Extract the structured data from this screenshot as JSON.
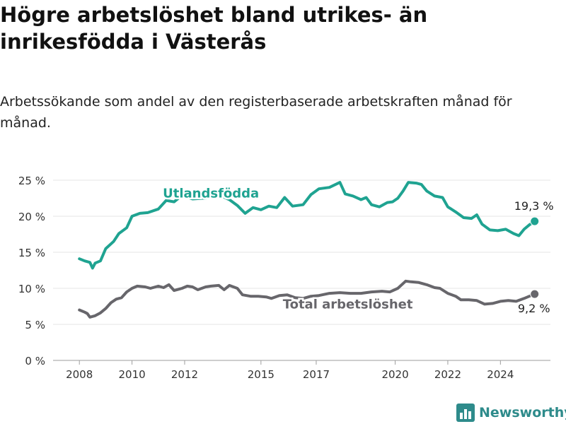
{
  "title": "Högre arbetslöshet bland utrikes- än inrikesfödda i Västerås",
  "subtitle": "Arbetssökande som andel av den registerbaserade arbetskraften månad för månad.",
  "brand": {
    "name": "Newsworthy",
    "icon": "bar-chart-logo-icon",
    "color": "#2e8b8b"
  },
  "chart_data": {
    "type": "line",
    "y_ticks": [
      "0 %",
      "5 %",
      "10 %",
      "15 %",
      "20 %",
      "25 %"
    ],
    "y_tick_values": [
      0,
      5,
      10,
      15,
      20,
      25
    ],
    "ylim": [
      0,
      25
    ],
    "x_ticks": [
      "2008",
      "2010",
      "2012",
      "2015",
      "2017",
      "2020",
      "2022",
      "2024"
    ],
    "x_tick_values": [
      2008.0,
      2010.0,
      2012.0,
      2014.9,
      2017.0,
      2020.0,
      2022.0,
      2024.0
    ],
    "xlim": [
      2007.0,
      2025.9
    ],
    "grid": "horizontal",
    "series": [
      {
        "name": "Utlandsfödda",
        "color": "#1fa391",
        "end_label": "19,3 %",
        "points": [
          [
            2008.0,
            14.1
          ],
          [
            2008.2,
            13.8
          ],
          [
            2008.4,
            13.6
          ],
          [
            2008.5,
            12.8
          ],
          [
            2008.6,
            13.5
          ],
          [
            2008.8,
            13.8
          ],
          [
            2009.0,
            15.5
          ],
          [
            2009.3,
            16.5
          ],
          [
            2009.5,
            17.6
          ],
          [
            2009.8,
            18.4
          ],
          [
            2010.0,
            20.0
          ],
          [
            2010.3,
            20.4
          ],
          [
            2010.6,
            20.5
          ],
          [
            2011.0,
            21.0
          ],
          [
            2011.3,
            22.2
          ],
          [
            2011.6,
            22.0
          ],
          [
            2011.9,
            22.9
          ],
          [
            2012.3,
            22.4
          ],
          [
            2012.7,
            22.5
          ],
          [
            2013.0,
            22.6
          ],
          [
            2013.4,
            22.8
          ],
          [
            2013.7,
            22.3
          ],
          [
            2014.0,
            21.5
          ],
          [
            2014.3,
            20.4
          ],
          [
            2014.6,
            21.2
          ],
          [
            2014.9,
            20.9
          ],
          [
            2015.2,
            21.4
          ],
          [
            2015.5,
            21.2
          ],
          [
            2015.8,
            22.6
          ],
          [
            2016.1,
            21.4
          ],
          [
            2016.5,
            21.6
          ],
          [
            2016.8,
            23.0
          ],
          [
            2017.1,
            23.8
          ],
          [
            2017.5,
            24.0
          ],
          [
            2017.9,
            24.7
          ],
          [
            2018.1,
            23.1
          ],
          [
            2018.4,
            22.8
          ],
          [
            2018.7,
            22.3
          ],
          [
            2018.9,
            22.6
          ],
          [
            2019.1,
            21.6
          ],
          [
            2019.4,
            21.3
          ],
          [
            2019.7,
            21.9
          ],
          [
            2019.9,
            22.0
          ],
          [
            2020.1,
            22.5
          ],
          [
            2020.3,
            23.5
          ],
          [
            2020.5,
            24.7
          ],
          [
            2020.8,
            24.6
          ],
          [
            2021.0,
            24.4
          ],
          [
            2021.2,
            23.5
          ],
          [
            2021.5,
            22.8
          ],
          [
            2021.8,
            22.6
          ],
          [
            2022.0,
            21.3
          ],
          [
            2022.3,
            20.6
          ],
          [
            2022.6,
            19.8
          ],
          [
            2022.9,
            19.7
          ],
          [
            2023.1,
            20.2
          ],
          [
            2023.3,
            18.9
          ],
          [
            2023.6,
            18.1
          ],
          [
            2023.9,
            18.0
          ],
          [
            2024.2,
            18.2
          ],
          [
            2024.5,
            17.6
          ],
          [
            2024.7,
            17.3
          ],
          [
            2024.9,
            18.2
          ],
          [
            2025.1,
            18.8
          ],
          [
            2025.3,
            19.3
          ]
        ]
      },
      {
        "name": "Total arbetslöshet",
        "color": "#67666b",
        "end_label": "9,2 %",
        "points": [
          [
            2008.0,
            7.0
          ],
          [
            2008.2,
            6.7
          ],
          [
            2008.3,
            6.5
          ],
          [
            2008.4,
            6.0
          ],
          [
            2008.6,
            6.2
          ],
          [
            2008.8,
            6.6
          ],
          [
            2009.0,
            7.2
          ],
          [
            2009.2,
            8.0
          ],
          [
            2009.4,
            8.5
          ],
          [
            2009.6,
            8.7
          ],
          [
            2009.8,
            9.5
          ],
          [
            2010.0,
            10.0
          ],
          [
            2010.2,
            10.3
          ],
          [
            2010.5,
            10.2
          ],
          [
            2010.7,
            10.0
          ],
          [
            2011.0,
            10.3
          ],
          [
            2011.2,
            10.1
          ],
          [
            2011.4,
            10.5
          ],
          [
            2011.6,
            9.7
          ],
          [
            2011.9,
            10.0
          ],
          [
            2012.1,
            10.3
          ],
          [
            2012.3,
            10.2
          ],
          [
            2012.5,
            9.8
          ],
          [
            2012.8,
            10.2
          ],
          [
            2013.0,
            10.3
          ],
          [
            2013.3,
            10.4
          ],
          [
            2013.5,
            9.8
          ],
          [
            2013.7,
            10.4
          ],
          [
            2014.0,
            10.0
          ],
          [
            2014.2,
            9.1
          ],
          [
            2014.5,
            8.9
          ],
          [
            2014.8,
            8.9
          ],
          [
            2015.1,
            8.8
          ],
          [
            2015.3,
            8.6
          ],
          [
            2015.6,
            9.0
          ],
          [
            2015.9,
            9.1
          ],
          [
            2016.2,
            8.7
          ],
          [
            2016.5,
            8.6
          ],
          [
            2016.8,
            8.9
          ],
          [
            2017.1,
            9.0
          ],
          [
            2017.5,
            9.3
          ],
          [
            2017.9,
            9.4
          ],
          [
            2018.3,
            9.3
          ],
          [
            2018.7,
            9.3
          ],
          [
            2019.1,
            9.5
          ],
          [
            2019.5,
            9.6
          ],
          [
            2019.8,
            9.5
          ],
          [
            2020.1,
            10.0
          ],
          [
            2020.4,
            11.0
          ],
          [
            2020.6,
            10.9
          ],
          [
            2020.9,
            10.8
          ],
          [
            2021.2,
            10.5
          ],
          [
            2021.5,
            10.1
          ],
          [
            2021.7,
            10.0
          ],
          [
            2022.0,
            9.3
          ],
          [
            2022.3,
            8.9
          ],
          [
            2022.5,
            8.4
          ],
          [
            2022.8,
            8.4
          ],
          [
            2023.1,
            8.3
          ],
          [
            2023.4,
            7.8
          ],
          [
            2023.7,
            7.9
          ],
          [
            2024.0,
            8.2
          ],
          [
            2024.3,
            8.3
          ],
          [
            2024.6,
            8.2
          ],
          [
            2024.9,
            8.6
          ],
          [
            2025.1,
            8.9
          ],
          [
            2025.3,
            9.2
          ]
        ]
      }
    ]
  }
}
